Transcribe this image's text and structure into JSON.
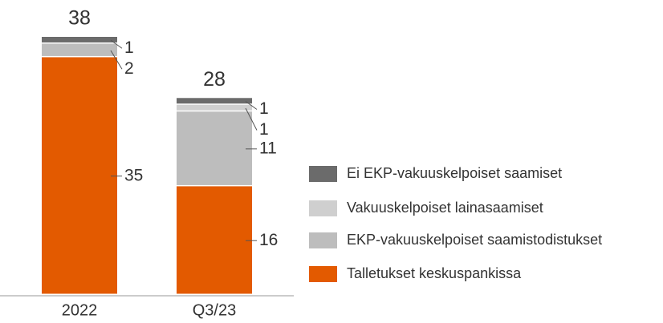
{
  "chart_data": {
    "type": "stacked_bar",
    "categories": [
      "2022",
      "Q3/23"
    ],
    "series": [
      {
        "name": "Talletukset keskuspankissa",
        "color": "#e35a00",
        "values": [
          35,
          16
        ]
      },
      {
        "name": "EKP-vakuuskelpoiset saamistodistukset",
        "color": "#bdbdbd",
        "values": [
          2,
          11
        ]
      },
      {
        "name": "Vakuuskelpoiset lainasaamiset",
        "color": "#cfcfcf",
        "values": [
          null,
          1
        ]
      },
      {
        "name": "Ei EKP-vakuuskelpoiset saamiset",
        "color": "#6b6b6b",
        "values": [
          1,
          1
        ]
      }
    ],
    "totals": [
      38,
      28
    ],
    "ylim": [
      0,
      38
    ]
  }
}
